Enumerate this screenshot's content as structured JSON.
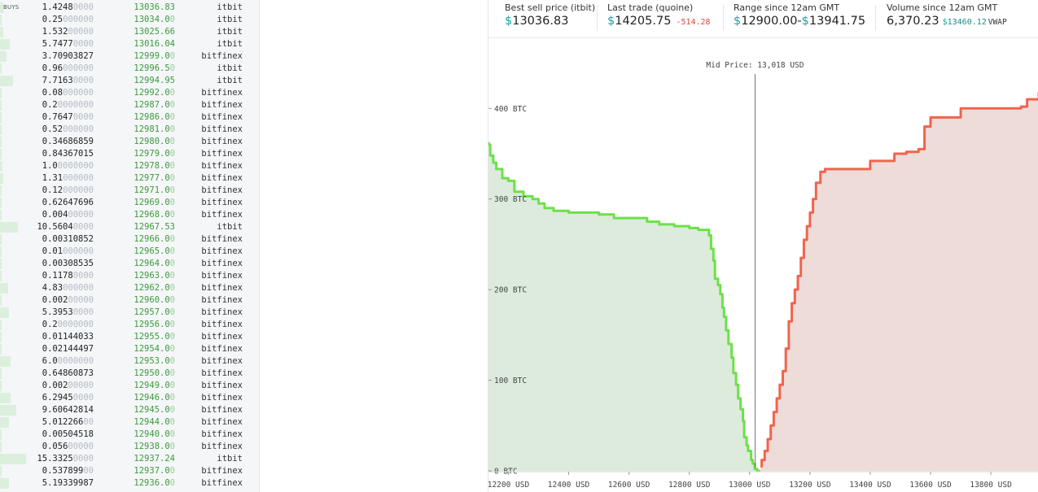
{
  "orderbook": {
    "side_label": "BUYS",
    "rows": [
      {
        "amount": "1.4248",
        "amount_pad": "0000",
        "price": "13036.83",
        "price_pad": "",
        "exchange": "itbit",
        "depth": 0.1
      },
      {
        "amount": "0.25",
        "amount_pad": "000000",
        "price": "13034.0",
        "price_pad": "0",
        "exchange": "itbit",
        "depth": 0.05
      },
      {
        "amount": "1.532",
        "amount_pad": "00000",
        "price": "13025.66",
        "price_pad": "",
        "exchange": "itbit",
        "depth": 0.1
      },
      {
        "amount": "5.7477",
        "amount_pad": "0000",
        "price": "13016.04",
        "price_pad": "",
        "exchange": "itbit",
        "depth": 0.3
      },
      {
        "amount": "3.70903827",
        "amount_pad": "",
        "price": "12999.0",
        "price_pad": "0",
        "exchange": "bitfinex",
        "depth": 0.2
      },
      {
        "amount": "0.96",
        "amount_pad": "000000",
        "price": "12996.5",
        "price_pad": "0",
        "exchange": "itbit",
        "depth": 0.06
      },
      {
        "amount": "7.7163",
        "amount_pad": "0000",
        "price": "12994.95",
        "price_pad": "",
        "exchange": "itbit",
        "depth": 0.4
      },
      {
        "amount": "0.08",
        "amount_pad": "000000",
        "price": "12992.0",
        "price_pad": "0",
        "exchange": "bitfinex",
        "depth": 0.05
      },
      {
        "amount": "0.2",
        "amount_pad": "0000000",
        "price": "12987.0",
        "price_pad": "0",
        "exchange": "bitfinex",
        "depth": 0.05
      },
      {
        "amount": "0.7647",
        "amount_pad": "0000",
        "price": "12986.0",
        "price_pad": "0",
        "exchange": "bitfinex",
        "depth": 0.06
      },
      {
        "amount": "0.52",
        "amount_pad": "000000",
        "price": "12981.0",
        "price_pad": "0",
        "exchange": "bitfinex",
        "depth": 0.05
      },
      {
        "amount": "0.34686859",
        "amount_pad": "",
        "price": "12980.0",
        "price_pad": "0",
        "exchange": "bitfinex",
        "depth": 0.05
      },
      {
        "amount": "0.84367015",
        "amount_pad": "",
        "price": "12979.0",
        "price_pad": "0",
        "exchange": "bitfinex",
        "depth": 0.06
      },
      {
        "amount": "1.0",
        "amount_pad": "0000000",
        "price": "12978.0",
        "price_pad": "0",
        "exchange": "bitfinex",
        "depth": 0.08
      },
      {
        "amount": "1.31",
        "amount_pad": "000000",
        "price": "12977.0",
        "price_pad": "0",
        "exchange": "bitfinex",
        "depth": 0.1
      },
      {
        "amount": "0.12",
        "amount_pad": "000000",
        "price": "12971.0",
        "price_pad": "0",
        "exchange": "bitfinex",
        "depth": 0.05
      },
      {
        "amount": "0.62647696",
        "amount_pad": "",
        "price": "12969.0",
        "price_pad": "0",
        "exchange": "bitfinex",
        "depth": 0.05
      },
      {
        "amount": "0.004",
        "amount_pad": "00000",
        "price": "12968.0",
        "price_pad": "0",
        "exchange": "bitfinex",
        "depth": 0.03
      },
      {
        "amount": "10.5604",
        "amount_pad": "0000",
        "price": "12967.53",
        "price_pad": "",
        "exchange": "itbit",
        "depth": 0.55
      },
      {
        "amount": "0.00310852",
        "amount_pad": "",
        "price": "12966.0",
        "price_pad": "0",
        "exchange": "bitfinex",
        "depth": 0.03
      },
      {
        "amount": "0.01",
        "amount_pad": "000000",
        "price": "12965.0",
        "price_pad": "0",
        "exchange": "bitfinex",
        "depth": 0.03
      },
      {
        "amount": "0.00308535",
        "amount_pad": "",
        "price": "12964.0",
        "price_pad": "0",
        "exchange": "bitfinex",
        "depth": 0.03
      },
      {
        "amount": "0.1178",
        "amount_pad": "0000",
        "price": "12963.0",
        "price_pad": "0",
        "exchange": "bitfinex",
        "depth": 0.04
      },
      {
        "amount": "4.83",
        "amount_pad": "000000",
        "price": "12962.0",
        "price_pad": "0",
        "exchange": "bitfinex",
        "depth": 0.25
      },
      {
        "amount": "0.002",
        "amount_pad": "00000",
        "price": "12960.0",
        "price_pad": "0",
        "exchange": "bitfinex",
        "depth": 0.03
      },
      {
        "amount": "5.3953",
        "amount_pad": "0000",
        "price": "12957.0",
        "price_pad": "0",
        "exchange": "bitfinex",
        "depth": 0.28
      },
      {
        "amount": "0.2",
        "amount_pad": "0000000",
        "price": "12956.0",
        "price_pad": "0",
        "exchange": "bitfinex",
        "depth": 0.04
      },
      {
        "amount": "0.01144033",
        "amount_pad": "",
        "price": "12955.0",
        "price_pad": "0",
        "exchange": "bitfinex",
        "depth": 0.03
      },
      {
        "amount": "0.02144497",
        "amount_pad": "",
        "price": "12954.0",
        "price_pad": "0",
        "exchange": "bitfinex",
        "depth": 0.03
      },
      {
        "amount": "6.0",
        "amount_pad": "0000000",
        "price": "12953.0",
        "price_pad": "0",
        "exchange": "bitfinex",
        "depth": 0.32
      },
      {
        "amount": "0.64860873",
        "amount_pad": "",
        "price": "12950.0",
        "price_pad": "0",
        "exchange": "bitfinex",
        "depth": 0.05
      },
      {
        "amount": "0.002",
        "amount_pad": "00000",
        "price": "12949.0",
        "price_pad": "0",
        "exchange": "bitfinex",
        "depth": 0.03
      },
      {
        "amount": "6.2945",
        "amount_pad": "0000",
        "price": "12946.0",
        "price_pad": "0",
        "exchange": "bitfinex",
        "depth": 0.33
      },
      {
        "amount": "9.60642814",
        "amount_pad": "",
        "price": "12945.0",
        "price_pad": "0",
        "exchange": "bitfinex",
        "depth": 0.5
      },
      {
        "amount": "5.012266",
        "amount_pad": "00",
        "price": "12944.0",
        "price_pad": "0",
        "exchange": "bitfinex",
        "depth": 0.27
      },
      {
        "amount": "0.00504518",
        "amount_pad": "",
        "price": "12940.0",
        "price_pad": "0",
        "exchange": "bitfinex",
        "depth": 0.03
      },
      {
        "amount": "0.056",
        "amount_pad": "00000",
        "price": "12938.0",
        "price_pad": "0",
        "exchange": "bitfinex",
        "depth": 0.03
      },
      {
        "amount": "15.3325",
        "amount_pad": "0000",
        "price": "12937.24",
        "price_pad": "",
        "exchange": "itbit",
        "depth": 0.8
      },
      {
        "amount": "0.537899",
        "amount_pad": "00",
        "price": "12937.0",
        "price_pad": "0",
        "exchange": "bitfinex",
        "depth": 0.05
      },
      {
        "amount": "5.19339987",
        "amount_pad": "",
        "price": "12936.0",
        "price_pad": "0",
        "exchange": "bitfinex",
        "depth": 0.27
      }
    ]
  },
  "stats": {
    "best_sell": {
      "label": "Best sell price (itbit)",
      "currency": "$",
      "value": "13036.83"
    },
    "last_trade": {
      "label": "Last trade (quoine)",
      "currency": "$",
      "value": "14205.75",
      "change": "-514.28"
    },
    "range": {
      "label": "Range since 12am GMT",
      "currency_low": "$",
      "low": "12900.00",
      "dash": "-",
      "currency_high": "$",
      "high": "13941.75"
    },
    "volume": {
      "label": "Volume since 12am GMT",
      "value": "6,370.23",
      "vwap_currency": "$",
      "vwap_value": "13460.12",
      "vwap_label": "VWAP"
    }
  },
  "colors": {
    "bid_line": "#6ee04a",
    "bid_fill": "#dcebdc",
    "ask_line": "#f0644e",
    "ask_fill": "#eedcd9",
    "mid_line": "#555555",
    "accent": "#1aa6a6"
  },
  "chart_data": {
    "type": "area",
    "mid_label": "Mid Price: 13,018 USD",
    "mid_price": 13018,
    "x_unit": "USD",
    "y_unit": "BTC",
    "x_ticks": [
      12200,
      12400,
      12600,
      12800,
      13000,
      13200,
      13400,
      13600,
      13800
    ],
    "y_ticks": [
      0,
      100,
      200,
      300,
      400
    ],
    "xlim": [
      12134,
      13959
    ],
    "ylim": [
      0,
      420
    ],
    "bids": [
      [
        13035,
        0
      ],
      [
        13025,
        2
      ],
      [
        13017,
        8
      ],
      [
        13010,
        12
      ],
      [
        13005,
        22
      ],
      [
        12995,
        28
      ],
      [
        12990,
        37
      ],
      [
        12982,
        55
      ],
      [
        12978,
        68
      ],
      [
        12970,
        80
      ],
      [
        12962,
        95
      ],
      [
        12955,
        108
      ],
      [
        12946,
        125
      ],
      [
        12940,
        140
      ],
      [
        12930,
        155
      ],
      [
        12922,
        170
      ],
      [
        12915,
        180
      ],
      [
        12910,
        195
      ],
      [
        12903,
        205
      ],
      [
        12895,
        212
      ],
      [
        12885,
        232
      ],
      [
        12880,
        245
      ],
      [
        12872,
        260
      ],
      [
        12865,
        266
      ],
      [
        12850,
        266
      ],
      [
        12830,
        268
      ],
      [
        12800,
        270
      ],
      [
        12750,
        272
      ],
      [
        12700,
        275
      ],
      [
        12660,
        279
      ],
      [
        12600,
        279
      ],
      [
        12550,
        283
      ],
      [
        12500,
        285
      ],
      [
        12450,
        285
      ],
      [
        12400,
        287
      ],
      [
        12350,
        290
      ],
      [
        12320,
        295
      ],
      [
        12300,
        300
      ],
      [
        12280,
        303
      ],
      [
        12250,
        308
      ],
      [
        12220,
        320
      ],
      [
        12200,
        323
      ],
      [
        12180,
        333
      ],
      [
        12160,
        340
      ],
      [
        12150,
        348
      ],
      [
        12140,
        360
      ],
      [
        12134,
        363
      ]
    ],
    "asks": [
      [
        13036,
        5
      ],
      [
        13040,
        12
      ],
      [
        13050,
        22
      ],
      [
        13060,
        35
      ],
      [
        13070,
        50
      ],
      [
        13080,
        65
      ],
      [
        13090,
        80
      ],
      [
        13100,
        95
      ],
      [
        13110,
        110
      ],
      [
        13120,
        135
      ],
      [
        13130,
        165
      ],
      [
        13140,
        185
      ],
      [
        13150,
        200
      ],
      [
        13160,
        215
      ],
      [
        13170,
        235
      ],
      [
        13180,
        255
      ],
      [
        13190,
        270
      ],
      [
        13200,
        285
      ],
      [
        13210,
        300
      ],
      [
        13220,
        318
      ],
      [
        13235,
        330
      ],
      [
        13250,
        333
      ],
      [
        13300,
        333
      ],
      [
        13350,
        333
      ],
      [
        13400,
        342
      ],
      [
        13460,
        342
      ],
      [
        13480,
        350
      ],
      [
        13520,
        352
      ],
      [
        13560,
        355
      ],
      [
        13580,
        380
      ],
      [
        13600,
        390
      ],
      [
        13650,
        390
      ],
      [
        13700,
        400
      ],
      [
        13800,
        400
      ],
      [
        13900,
        402
      ],
      [
        13920,
        410
      ],
      [
        13959,
        418
      ]
    ]
  }
}
